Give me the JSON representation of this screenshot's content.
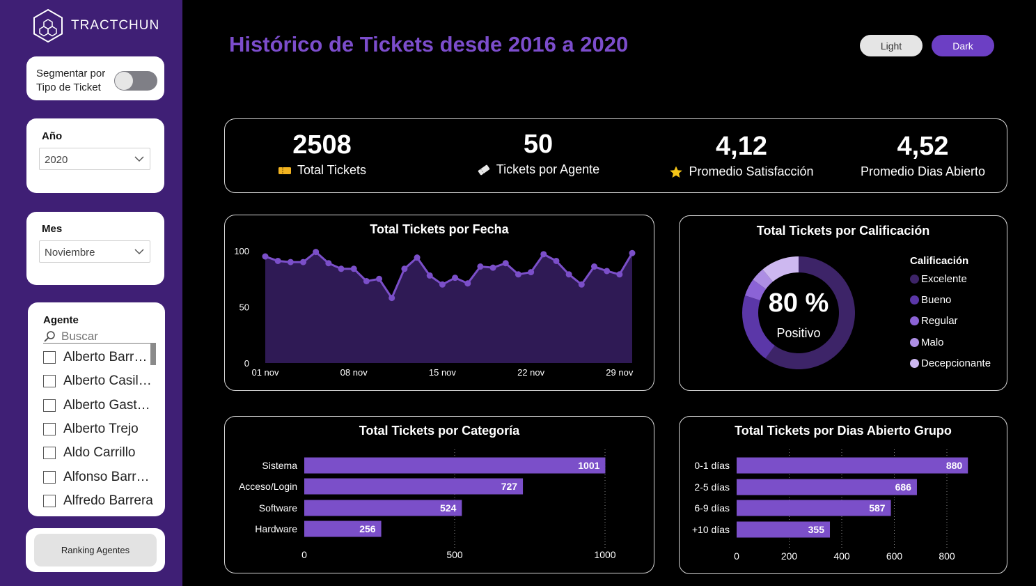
{
  "brand": {
    "name": "TRACTCHUN"
  },
  "sidebar": {
    "toggle": {
      "label_line1": "Segmentar por",
      "label_line2": "Tipo de Ticket"
    },
    "year": {
      "title": "Año",
      "value": "2020"
    },
    "month": {
      "title": "Mes",
      "value": "Noviembre"
    },
    "agents": {
      "title": "Agente",
      "search_placeholder": "Buscar",
      "items": [
        "Alberto Barraza",
        "Alberto Casillas",
        "Alberto Gastelum",
        "Alberto Trejo",
        "Aldo Carrillo",
        "Alfonso Barraza",
        "Alfredo Barrera"
      ]
    },
    "ranking_button": "Ranking Agentes"
  },
  "header": {
    "title": "Histórico de Tickets desde 2016 a 2020",
    "light_label": "Light",
    "dark_label": "Dark"
  },
  "kpis": [
    {
      "value": "2508",
      "label": "Total Tickets",
      "icon": "ticket-icon"
    },
    {
      "value": "50",
      "label": "Tickets por Agente",
      "icon": "ticket-tilted-icon"
    },
    {
      "value": "4,12",
      "label": "Promedio Satisfacción",
      "icon": "star-icon"
    },
    {
      "value": "4,52",
      "label": "Promedio Dias Abierto",
      "icon": ""
    }
  ],
  "colors": {
    "accent": "#7c4dcc",
    "bar": "#7b4fc9",
    "area": "#2f1a55",
    "line": "#7b4fc9",
    "donut": [
      "#3d2468",
      "#5b37a8",
      "#8b63d6",
      "#ad8ee4",
      "#cdb8f0"
    ]
  },
  "chart_data": [
    {
      "type": "area",
      "title": "Total Tickets por Fecha",
      "x": [
        "01 nov",
        "02 nov",
        "03 nov",
        "04 nov",
        "05 nov",
        "06 nov",
        "07 nov",
        "08 nov",
        "09 nov",
        "10 nov",
        "11 nov",
        "12 nov",
        "13 nov",
        "14 nov",
        "15 nov",
        "16 nov",
        "17 nov",
        "18 nov",
        "19 nov",
        "20 nov",
        "21 nov",
        "22 nov",
        "23 nov",
        "24 nov",
        "25 nov",
        "26 nov",
        "27 nov",
        "28 nov",
        "29 nov",
        "30 nov"
      ],
      "values": [
        95,
        91,
        90,
        90,
        99,
        89,
        84,
        84,
        73,
        75,
        58,
        84,
        94,
        78,
        70,
        76,
        71,
        86,
        85,
        89,
        79,
        81,
        97,
        91,
        79,
        70,
        86,
        82,
        79,
        98
      ],
      "xticks": [
        "01 nov",
        "08 nov",
        "15 nov",
        "22 nov",
        "29 nov"
      ],
      "yticks": [
        0,
        50,
        100
      ],
      "ylim": [
        0,
        100
      ]
    },
    {
      "type": "pie",
      "title": "Total Tickets por Calificación",
      "legend_title": "Calificación",
      "categories": [
        "Excelente",
        "Bueno",
        "Regular",
        "Malo",
        "Decepcionante"
      ],
      "values": [
        60,
        20,
        5,
        4,
        11
      ],
      "center_value": "80 %",
      "center_label": "Positivo"
    },
    {
      "type": "bar",
      "title": "Total Tickets por Categoría",
      "categories": [
        "Sistema",
        "Acceso/Login",
        "Software",
        "Hardware"
      ],
      "values": [
        1001,
        727,
        524,
        256
      ],
      "xticks": [
        0,
        500,
        1000
      ],
      "xlim": [
        0,
        1000
      ]
    },
    {
      "type": "bar",
      "title": "Total Tickets por Dias Abierto Grupo",
      "categories": [
        "0-1 días",
        "2-5 días",
        "6-9 días",
        "+10 días"
      ],
      "values": [
        880,
        686,
        587,
        355
      ],
      "xticks": [
        0,
        200,
        400,
        600,
        800
      ],
      "xlim": [
        0,
        800
      ]
    }
  ]
}
